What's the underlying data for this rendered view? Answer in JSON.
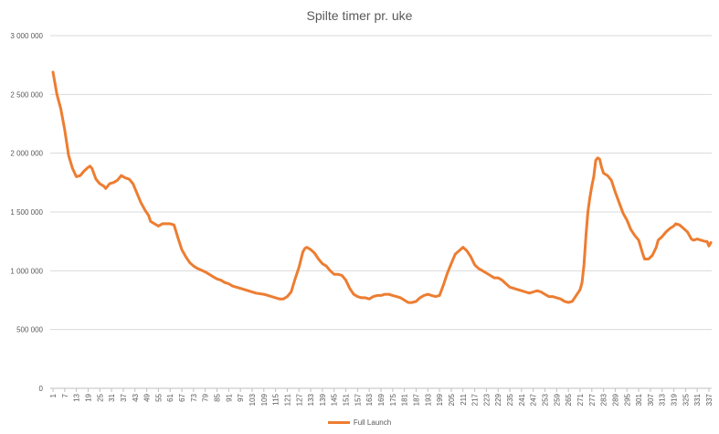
{
  "chart_data": {
    "type": "line",
    "title": "Spilte timer pr. uke",
    "xlabel": "",
    "ylabel": "",
    "ylim": [
      0,
      3000000
    ],
    "yticks": [
      "0",
      "500 000",
      "1 000 000",
      "1 500 000",
      "2 000 000",
      "2 500 000",
      "3 000 000"
    ],
    "ytick_values": [
      0,
      500000,
      1000000,
      1500000,
      2000000,
      2500000,
      3000000
    ],
    "xticks": [
      "1",
      "7",
      "13",
      "19",
      "25",
      "31",
      "37",
      "43",
      "49",
      "55",
      "61",
      "67",
      "73",
      "79",
      "85",
      "91",
      "97",
      "103",
      "109",
      "115",
      "121",
      "127",
      "133",
      "139",
      "145",
      "151",
      "157",
      "163",
      "169",
      "175",
      "181",
      "187",
      "193",
      "199",
      "205",
      "211",
      "217",
      "223",
      "229",
      "235",
      "241",
      "247",
      "253",
      "259",
      "265",
      "271",
      "277",
      "283",
      "289",
      "295",
      "301",
      "307",
      "313",
      "319",
      "325",
      "331",
      "337"
    ],
    "grid": true,
    "legend": "bottom",
    "color": "#ED7D31",
    "series": [
      {
        "name": "Full Launch",
        "points": [
          [
            1,
            2690000
          ],
          [
            3,
            2500000
          ],
          [
            5,
            2380000
          ],
          [
            7,
            2200000
          ],
          [
            9,
            1980000
          ],
          [
            11,
            1870000
          ],
          [
            13,
            1800000
          ],
          [
            15,
            1810000
          ],
          [
            17,
            1850000
          ],
          [
            19,
            1880000
          ],
          [
            20,
            1890000
          ],
          [
            21,
            1870000
          ],
          [
            23,
            1780000
          ],
          [
            25,
            1740000
          ],
          [
            27,
            1720000
          ],
          [
            28,
            1700000
          ],
          [
            30,
            1740000
          ],
          [
            32,
            1750000
          ],
          [
            34,
            1770000
          ],
          [
            36,
            1810000
          ],
          [
            38,
            1790000
          ],
          [
            40,
            1780000
          ],
          [
            42,
            1740000
          ],
          [
            44,
            1660000
          ],
          [
            46,
            1580000
          ],
          [
            48,
            1520000
          ],
          [
            50,
            1470000
          ],
          [
            51,
            1420000
          ],
          [
            53,
            1400000
          ],
          [
            55,
            1380000
          ],
          [
            57,
            1400000
          ],
          [
            59,
            1400000
          ],
          [
            61,
            1400000
          ],
          [
            63,
            1390000
          ],
          [
            65,
            1280000
          ],
          [
            67,
            1180000
          ],
          [
            69,
            1120000
          ],
          [
            71,
            1070000
          ],
          [
            73,
            1040000
          ],
          [
            75,
            1020000
          ],
          [
            79,
            990000
          ],
          [
            81,
            970000
          ],
          [
            83,
            950000
          ],
          [
            85,
            930000
          ],
          [
            87,
            920000
          ],
          [
            89,
            900000
          ],
          [
            91,
            890000
          ],
          [
            93,
            870000
          ],
          [
            97,
            850000
          ],
          [
            101,
            830000
          ],
          [
            105,
            810000
          ],
          [
            109,
            800000
          ],
          [
            113,
            780000
          ],
          [
            115,
            770000
          ],
          [
            117,
            760000
          ],
          [
            119,
            760000
          ],
          [
            121,
            780000
          ],
          [
            123,
            820000
          ],
          [
            125,
            930000
          ],
          [
            127,
            1030000
          ],
          [
            129,
            1160000
          ],
          [
            130,
            1190000
          ],
          [
            131,
            1200000
          ],
          [
            133,
            1180000
          ],
          [
            135,
            1150000
          ],
          [
            137,
            1100000
          ],
          [
            139,
            1060000
          ],
          [
            141,
            1040000
          ],
          [
            143,
            1000000
          ],
          [
            145,
            970000
          ],
          [
            147,
            970000
          ],
          [
            149,
            960000
          ],
          [
            151,
            920000
          ],
          [
            153,
            850000
          ],
          [
            155,
            800000
          ],
          [
            157,
            780000
          ],
          [
            159,
            770000
          ],
          [
            161,
            770000
          ],
          [
            163,
            760000
          ],
          [
            165,
            780000
          ],
          [
            167,
            790000
          ],
          [
            169,
            790000
          ],
          [
            171,
            800000
          ],
          [
            173,
            800000
          ],
          [
            175,
            790000
          ],
          [
            177,
            780000
          ],
          [
            179,
            770000
          ],
          [
            181,
            750000
          ],
          [
            183,
            730000
          ],
          [
            185,
            730000
          ],
          [
            187,
            740000
          ],
          [
            189,
            770000
          ],
          [
            191,
            790000
          ],
          [
            193,
            800000
          ],
          [
            195,
            790000
          ],
          [
            197,
            780000
          ],
          [
            199,
            790000
          ],
          [
            201,
            880000
          ],
          [
            203,
            980000
          ],
          [
            205,
            1060000
          ],
          [
            207,
            1140000
          ],
          [
            209,
            1170000
          ],
          [
            211,
            1200000
          ],
          [
            213,
            1170000
          ],
          [
            215,
            1120000
          ],
          [
            217,
            1050000
          ],
          [
            219,
            1020000
          ],
          [
            221,
            1000000
          ],
          [
            223,
            980000
          ],
          [
            225,
            960000
          ],
          [
            227,
            940000
          ],
          [
            229,
            940000
          ],
          [
            231,
            920000
          ],
          [
            233,
            890000
          ],
          [
            235,
            860000
          ],
          [
            237,
            850000
          ],
          [
            239,
            840000
          ],
          [
            241,
            830000
          ],
          [
            243,
            820000
          ],
          [
            245,
            810000
          ],
          [
            247,
            820000
          ],
          [
            249,
            830000
          ],
          [
            251,
            820000
          ],
          [
            253,
            800000
          ],
          [
            255,
            780000
          ],
          [
            257,
            780000
          ],
          [
            259,
            770000
          ],
          [
            261,
            760000
          ],
          [
            263,
            740000
          ],
          [
            265,
            730000
          ],
          [
            267,
            740000
          ],
          [
            269,
            790000
          ],
          [
            271,
            840000
          ],
          [
            272,
            900000
          ],
          [
            273,
            1050000
          ],
          [
            274,
            1300000
          ],
          [
            275,
            1500000
          ],
          [
            276,
            1620000
          ],
          [
            277,
            1720000
          ],
          [
            278,
            1800000
          ],
          [
            279,
            1940000
          ],
          [
            280,
            1960000
          ],
          [
            281,
            1950000
          ],
          [
            282,
            1880000
          ],
          [
            283,
            1830000
          ],
          [
            285,
            1810000
          ],
          [
            287,
            1770000
          ],
          [
            289,
            1670000
          ],
          [
            291,
            1580000
          ],
          [
            293,
            1490000
          ],
          [
            295,
            1430000
          ],
          [
            297,
            1350000
          ],
          [
            299,
            1300000
          ],
          [
            301,
            1260000
          ],
          [
            303,
            1150000
          ],
          [
            304,
            1100000
          ],
          [
            306,
            1100000
          ],
          [
            308,
            1130000
          ],
          [
            310,
            1200000
          ],
          [
            311,
            1260000
          ],
          [
            313,
            1290000
          ],
          [
            315,
            1330000
          ],
          [
            317,
            1360000
          ],
          [
            319,
            1380000
          ],
          [
            320,
            1400000
          ],
          [
            322,
            1390000
          ],
          [
            324,
            1360000
          ],
          [
            326,
            1330000
          ],
          [
            327,
            1300000
          ],
          [
            328,
            1270000
          ],
          [
            329,
            1260000
          ],
          [
            331,
            1270000
          ],
          [
            333,
            1260000
          ],
          [
            335,
            1250000
          ],
          [
            336,
            1250000
          ],
          [
            337,
            1210000
          ],
          [
            338,
            1240000
          ]
        ]
      }
    ]
  }
}
